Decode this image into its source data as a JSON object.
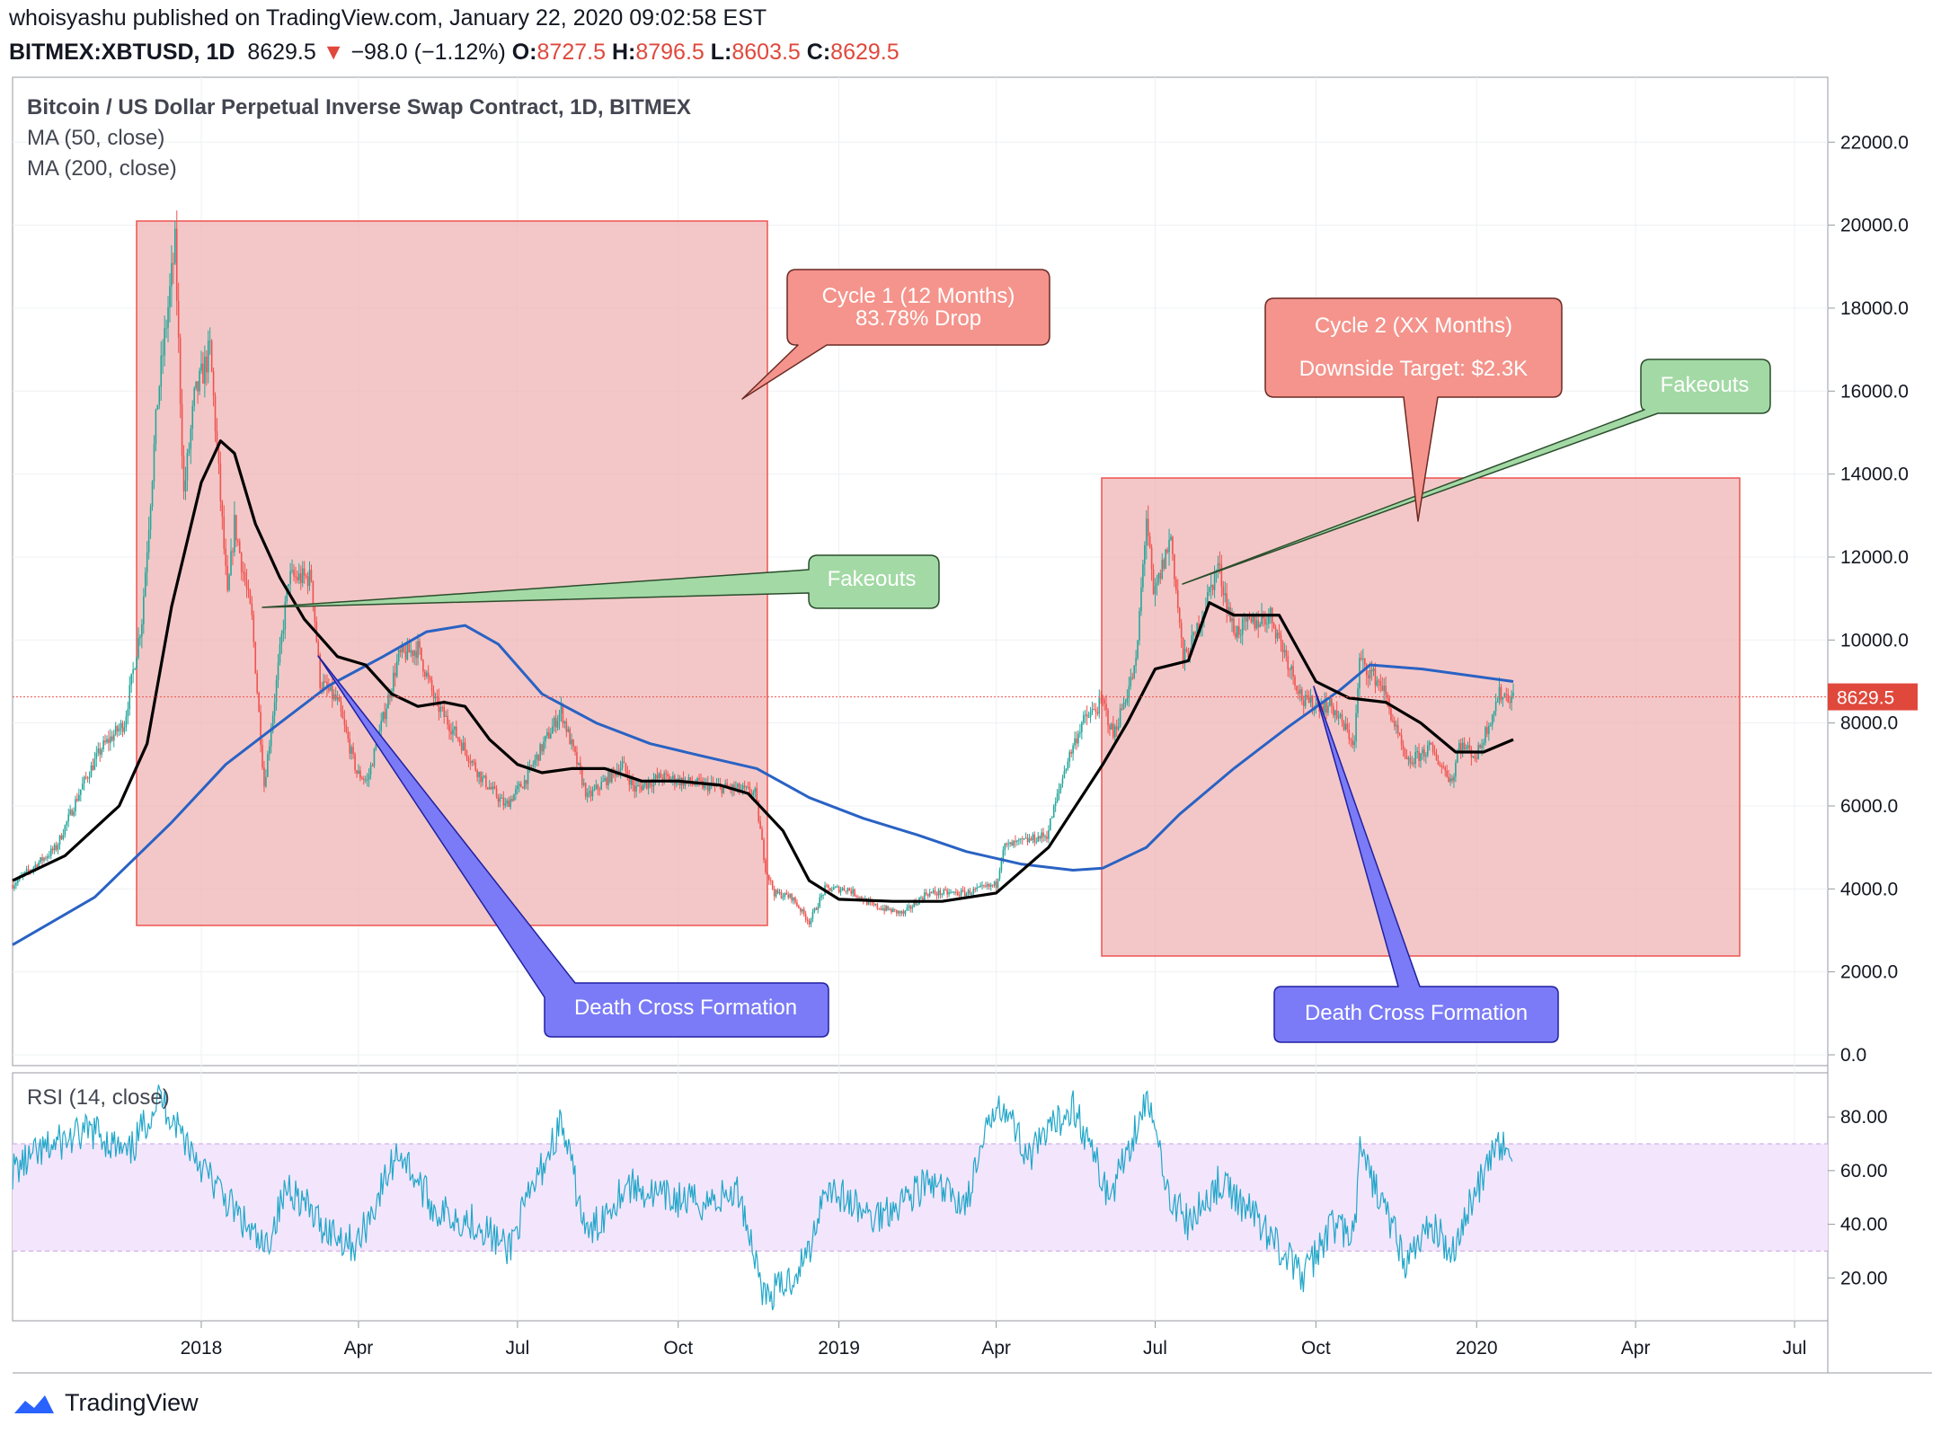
{
  "header": {
    "publisher": "whoisyashu published on TradingView.com, January 22, 2020 09:02:58 EST",
    "symbol": "BITMEX:XBTUSD, 1D",
    "last": "8629.5",
    "down_arrow": "▼",
    "change": "−98.0 (−1.12%)",
    "o_label": "O:",
    "o_val": "8727.5",
    "h_label": "H:",
    "h_val": "8796.5",
    "l_label": "L:",
    "l_val": "8603.5",
    "c_label": "C:",
    "c_val": "8629.5"
  },
  "legend": {
    "title": "Bitcoin / US Dollar Perpetual Inverse Swap Contract, 1D, BITMEX",
    "ma50": "MA (50, close)",
    "ma200": "MA (200, close)",
    "rsi": "RSI (14, close)"
  },
  "footer": {
    "brand": "TradingView"
  },
  "colors": {
    "up": "#26a69a",
    "down": "#ef5350",
    "ma50": "#000000",
    "ma200": "#2962c4",
    "rsi": "#21a7c9",
    "rsi_band": "#f3e6fc",
    "box_fill": "#efb1b1",
    "box_stroke": "#ef5350",
    "green_callout": "#a3d9a5",
    "red_callout": "#f4948c",
    "blue_callout": "#7b7bf7"
  },
  "chart_data": {
    "type": "candlestick",
    "price_axis": {
      "range": [
        0,
        23000
      ],
      "ticks": [
        "22000.0",
        "20000.0",
        "18000.0",
        "16000.0",
        "14000.0",
        "12000.0",
        "10000.0",
        "8000.0",
        "6000.0",
        "4000.0",
        "2000.0",
        "0.0"
      ],
      "last_price_label": "8629.5"
    },
    "rsi_axis": {
      "ticks": [
        "80.00",
        "60.00",
        "40.00",
        "20.00"
      ],
      "band": [
        30,
        70
      ]
    },
    "time_axis": [
      "2018",
      "Apr",
      "Jul",
      "Oct",
      "2019",
      "Apr",
      "Jul",
      "Oct",
      "2020",
      "Apr",
      "Jul"
    ],
    "price_path": [
      [
        "2017-09-15",
        4100
      ],
      [
        "2017-10-10",
        5000
      ],
      [
        "2017-10-25",
        6500
      ],
      [
        "2017-11-05",
        7400
      ],
      [
        "2017-11-18",
        8000
      ],
      [
        "2017-11-28",
        10500
      ],
      [
        "2017-12-07",
        15800
      ],
      [
        "2017-12-17",
        19500
      ],
      [
        "2017-12-22",
        13500
      ],
      [
        "2017-12-28",
        15800
      ],
      [
        "2018-01-06",
        17000
      ],
      [
        "2018-01-16",
        11000
      ],
      [
        "2018-01-20",
        12800
      ],
      [
        "2018-01-30",
        10500
      ],
      [
        "2018-02-06",
        6500
      ],
      [
        "2018-02-12",
        8600
      ],
      [
        "2018-02-20",
        11500
      ],
      [
        "2018-03-05",
        11500
      ],
      [
        "2018-03-10",
        9000
      ],
      [
        "2018-03-20",
        8500
      ],
      [
        "2018-03-31",
        6800
      ],
      [
        "2018-04-06",
        6600
      ],
      [
        "2018-04-24",
        9600
      ],
      [
        "2018-05-05",
        9800
      ],
      [
        "2018-05-15",
        8500
      ],
      [
        "2018-05-30",
        7500
      ],
      [
        "2018-06-10",
        6700
      ],
      [
        "2018-06-24",
        6000
      ],
      [
        "2018-07-05",
        6600
      ],
      [
        "2018-07-26",
        8300
      ],
      [
        "2018-08-10",
        6200
      ],
      [
        "2018-08-30",
        7000
      ],
      [
        "2018-09-06",
        6400
      ],
      [
        "2018-09-21",
        6700
      ],
      [
        "2018-10-15",
        6500
      ],
      [
        "2018-11-05",
        6400
      ],
      [
        "2018-11-14",
        6300
      ],
      [
        "2018-11-20",
        4500
      ],
      [
        "2018-11-25",
        3900
      ],
      [
        "2018-12-05",
        3800
      ],
      [
        "2018-12-15",
        3200
      ],
      [
        "2018-12-24",
        4000
      ],
      [
        "2019-01-06",
        4000
      ],
      [
        "2019-01-20",
        3600
      ],
      [
        "2019-02-07",
        3400
      ],
      [
        "2019-02-20",
        3900
      ],
      [
        "2019-03-15",
        3900
      ],
      [
        "2019-04-01",
        4100
      ],
      [
        "2019-04-05",
        5000
      ],
      [
        "2019-04-30",
        5300
      ],
      [
        "2019-05-11",
        7000
      ],
      [
        "2019-05-20",
        8000
      ],
      [
        "2019-06-01",
        8500
      ],
      [
        "2019-06-07",
        7700
      ],
      [
        "2019-06-20",
        9400
      ],
      [
        "2019-06-26",
        13000
      ],
      [
        "2019-06-30",
        11000
      ],
      [
        "2019-07-10",
        12500
      ],
      [
        "2019-07-17",
        9500
      ],
      [
        "2019-07-23",
        10000
      ],
      [
        "2019-08-06",
        11800
      ],
      [
        "2019-08-15",
        10200
      ],
      [
        "2019-09-05",
        10600
      ],
      [
        "2019-09-24",
        8500
      ],
      [
        "2019-10-10",
        8400
      ],
      [
        "2019-10-23",
        7500
      ],
      [
        "2019-10-26",
        9500
      ],
      [
        "2019-11-08",
        8900
      ],
      [
        "2019-11-22",
        7000
      ],
      [
        "2019-12-05",
        7400
      ],
      [
        "2019-12-18",
        6600
      ],
      [
        "2019-12-22",
        7500
      ],
      [
        "2020-01-01",
        7200
      ],
      [
        "2020-01-14",
        8700
      ],
      [
        "2020-01-22",
        8630
      ]
    ],
    "ma50": [
      [
        "2017-09-15",
        4200
      ],
      [
        "2017-10-15",
        4800
      ],
      [
        "2017-11-15",
        6000
      ],
      [
        "2017-12-01",
        7500
      ],
      [
        "2017-12-15",
        10800
      ],
      [
        "2018-01-01",
        13800
      ],
      [
        "2018-01-12",
        14800
      ],
      [
        "2018-01-20",
        14500
      ],
      [
        "2018-02-01",
        12800
      ],
      [
        "2018-02-15",
        11500
      ],
      [
        "2018-03-01",
        10500
      ],
      [
        "2018-03-20",
        9600
      ],
      [
        "2018-04-05",
        9400
      ],
      [
        "2018-04-20",
        8700
      ],
      [
        "2018-05-05",
        8400
      ],
      [
        "2018-05-20",
        8500
      ],
      [
        "2018-06-01",
        8400
      ],
      [
        "2018-06-15",
        7600
      ],
      [
        "2018-07-01",
        7000
      ],
      [
        "2018-07-15",
        6800
      ],
      [
        "2018-08-01",
        6900
      ],
      [
        "2018-08-20",
        6900
      ],
      [
        "2018-09-10",
        6600
      ],
      [
        "2018-10-01",
        6600
      ],
      [
        "2018-10-25",
        6500
      ],
      [
        "2018-11-10",
        6300
      ],
      [
        "2018-11-30",
        5400
      ],
      [
        "2018-12-15",
        4200
      ],
      [
        "2019-01-01",
        3750
      ],
      [
        "2019-02-01",
        3700
      ],
      [
        "2019-03-01",
        3700
      ],
      [
        "2019-04-01",
        3900
      ],
      [
        "2019-05-01",
        5000
      ],
      [
        "2019-06-01",
        7000
      ],
      [
        "2019-06-15",
        8000
      ],
      [
        "2019-07-01",
        9300
      ],
      [
        "2019-07-20",
        9500
      ],
      [
        "2019-08-01",
        10900
      ],
      [
        "2019-08-15",
        10600
      ],
      [
        "2019-09-10",
        10600
      ],
      [
        "2019-10-01",
        9000
      ],
      [
        "2019-10-20",
        8600
      ],
      [
        "2019-11-10",
        8500
      ],
      [
        "2019-11-30",
        8000
      ],
      [
        "2019-12-20",
        7300
      ],
      [
        "2020-01-05",
        7300
      ],
      [
        "2020-01-22",
        7600
      ]
    ],
    "ma200": [
      [
        "2017-09-15",
        2650
      ],
      [
        "2017-11-01",
        3800
      ],
      [
        "2017-12-15",
        5600
      ],
      [
        "2018-01-15",
        7000
      ],
      [
        "2018-02-15",
        8000
      ],
      [
        "2018-03-15",
        8900
      ],
      [
        "2018-04-15",
        9600
      ],
      [
        "2018-05-10",
        10200
      ],
      [
        "2018-06-01",
        10350
      ],
      [
        "2018-06-20",
        9900
      ],
      [
        "2018-07-15",
        8700
      ],
      [
        "2018-08-15",
        8000
      ],
      [
        "2018-09-15",
        7500
      ],
      [
        "2018-10-15",
        7200
      ],
      [
        "2018-11-15",
        6900
      ],
      [
        "2018-12-15",
        6200
      ],
      [
        "2019-01-15",
        5700
      ],
      [
        "2019-02-15",
        5300
      ],
      [
        "2019-03-15",
        4900
      ],
      [
        "2019-04-15",
        4600
      ],
      [
        "2019-05-15",
        4450
      ],
      [
        "2019-06-01",
        4500
      ],
      [
        "2019-06-26",
        5000
      ],
      [
        "2019-07-15",
        5800
      ],
      [
        "2019-08-15",
        6900
      ],
      [
        "2019-09-15",
        7900
      ],
      [
        "2019-10-15",
        8800
      ],
      [
        "2019-11-01",
        9400
      ],
      [
        "2019-12-01",
        9300
      ],
      [
        "2020-01-22",
        9000
      ]
    ],
    "rsi_path": [
      [
        "2017-09-15",
        60
      ],
      [
        "2017-10-10",
        70
      ],
      [
        "2017-11-01",
        75
      ],
      [
        "2017-11-20",
        65
      ],
      [
        "2017-12-08",
        88
      ],
      [
        "2017-12-20",
        75
      ],
      [
        "2018-01-05",
        58
      ],
      [
        "2018-01-20",
        45
      ],
      [
        "2018-02-06",
        30
      ],
      [
        "2018-02-20",
        55
      ],
      [
        "2018-03-10",
        40
      ],
      [
        "2018-03-31",
        32
      ],
      [
        "2018-04-24",
        68
      ],
      [
        "2018-05-15",
        45
      ],
      [
        "2018-06-10",
        40
      ],
      [
        "2018-06-25",
        30
      ],
      [
        "2018-07-26",
        78
      ],
      [
        "2018-08-10",
        35
      ],
      [
        "2018-09-01",
        55
      ],
      [
        "2018-09-21",
        50
      ],
      [
        "2018-10-15",
        48
      ],
      [
        "2018-11-05",
        52
      ],
      [
        "2018-11-20",
        12
      ],
      [
        "2018-12-05",
        20
      ],
      [
        "2018-12-15",
        30
      ],
      [
        "2018-12-24",
        55
      ],
      [
        "2019-01-20",
        42
      ],
      [
        "2019-02-20",
        55
      ],
      [
        "2019-03-15",
        48
      ],
      [
        "2019-04-02",
        88
      ],
      [
        "2019-04-20",
        65
      ],
      [
        "2019-05-15",
        85
      ],
      [
        "2019-06-05",
        50
      ],
      [
        "2019-06-26",
        87
      ],
      [
        "2019-07-10",
        50
      ],
      [
        "2019-07-20",
        40
      ],
      [
        "2019-08-06",
        55
      ],
      [
        "2019-08-25",
        45
      ],
      [
        "2019-09-24",
        20
      ],
      [
        "2019-10-10",
        40
      ],
      [
        "2019-10-23",
        35
      ],
      [
        "2019-10-26",
        67
      ],
      [
        "2019-11-10",
        45
      ],
      [
        "2019-11-22",
        25
      ],
      [
        "2019-12-05",
        40
      ],
      [
        "2019-12-18",
        30
      ],
      [
        "2019-12-30",
        50
      ],
      [
        "2020-01-14",
        70
      ],
      [
        "2020-01-22",
        62
      ]
    ],
    "annotations": {
      "cycle1": {
        "title": "Cycle 1 (12 Months)",
        "detail": "83.78% Drop"
      },
      "cycle2": {
        "title": "Cycle 2 (XX Months)",
        "detail": "Downside Target: $2.3K"
      },
      "fakeouts": "Fakeouts",
      "death_cross": "Death Cross Formation"
    }
  }
}
